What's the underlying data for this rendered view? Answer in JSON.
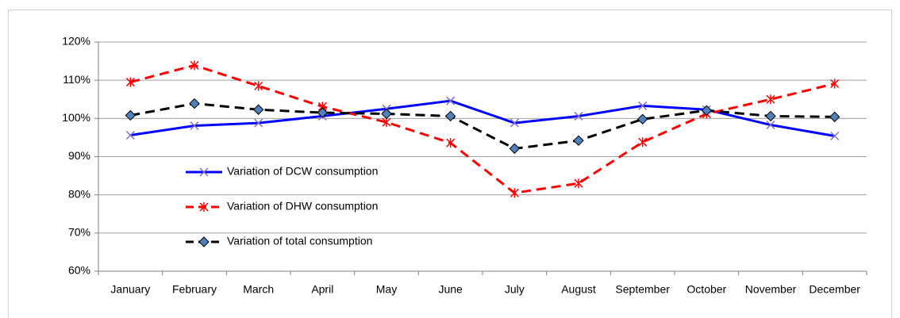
{
  "chart_data": {
    "type": "line",
    "categories": [
      "January",
      "February",
      "March",
      "April",
      "May",
      "June",
      "July",
      "August",
      "September",
      "October",
      "November",
      "December"
    ],
    "series": [
      {
        "name": "Variation of DCW consumption",
        "color": "#0000ff",
        "marker": "x",
        "marker_color": "#8070c8",
        "dash": "solid",
        "values": [
          95.6,
          98.1,
          98.8,
          100.6,
          102.5,
          104.6,
          98.8,
          100.6,
          103.3,
          102.3,
          98.3,
          95.4
        ]
      },
      {
        "name": "Variation of DHW consumption",
        "color": "#ff0000",
        "marker": "asterisk",
        "marker_color": "#ff0000",
        "dash": "dashed",
        "values": [
          109.5,
          113.9,
          108.5,
          103.1,
          99,
          93.6,
          80.5,
          83,
          93.8,
          101.2,
          105,
          109.1
        ]
      },
      {
        "name": "Variation of total consumption",
        "color": "#000000",
        "marker": "diamond",
        "marker_color": "#4f81bd",
        "dash": "dashed",
        "values": [
          100.8,
          103.9,
          102.3,
          101.5,
          101.2,
          100.6,
          92.1,
          94.2,
          99.8,
          102.1,
          100.6,
          100.4
        ]
      }
    ],
    "ylim": [
      60,
      120
    ],
    "yticks": [
      {
        "value": 60,
        "label": "60%"
      },
      {
        "value": 70,
        "label": "70%"
      },
      {
        "value": 80,
        "label": "80%"
      },
      {
        "value": 90,
        "label": "90%"
      },
      {
        "value": 100,
        "label": "100%"
      },
      {
        "value": 110,
        "label": "110%"
      },
      {
        "value": 120,
        "label": "120%"
      }
    ],
    "grid": true,
    "legend": "left"
  }
}
